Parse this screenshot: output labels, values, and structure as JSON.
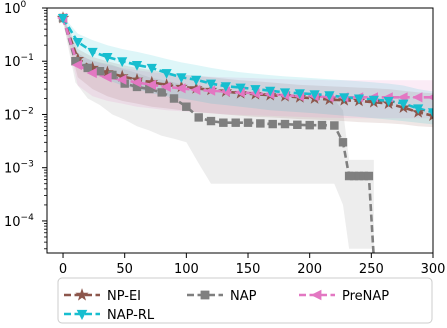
{
  "chart_data": {
    "type": "line",
    "title": "",
    "xlabel": "",
    "ylabel": "",
    "xlim": [
      -13,
      300
    ],
    "ylim": [
      2.5e-05,
      1.0
    ],
    "yscale": "log",
    "grid": false,
    "x_ticks": [
      0,
      50,
      100,
      150,
      200,
      250,
      300
    ],
    "x_tick_labels": [
      "0",
      "50",
      "100",
      "150",
      "200",
      "250",
      "300"
    ],
    "y_ticks": [
      0.0001,
      0.001,
      0.01,
      0.1,
      1
    ],
    "y_tick_labels": [
      {
        "base": "10",
        "exp": "−4"
      },
      {
        "base": "10",
        "exp": "−3"
      },
      {
        "base": "10",
        "exp": "−2"
      },
      {
        "base": "10",
        "exp": "−1"
      },
      {
        "base": "10",
        "exp": "0"
      }
    ],
    "legend": {
      "placement": "bottom",
      "entries": [
        {
          "name": "NP-EI",
          "color": "#8c564b",
          "marker": "star"
        },
        {
          "name": "NAP",
          "color": "#7f7f7f",
          "marker": "square"
        },
        {
          "name": "PreNAP",
          "color": "#e377c2",
          "marker": "triangle-left"
        },
        {
          "name": "NAP-RL",
          "color": "#17becf",
          "marker": "triangle-down"
        }
      ]
    },
    "series": [
      {
        "name": "NP-EI",
        "color": "#8c564b",
        "marker": "star",
        "x": [
          0,
          12,
          24,
          36,
          48,
          60,
          72,
          84,
          96,
          108,
          120,
          132,
          144,
          156,
          168,
          180,
          192,
          204,
          216,
          228,
          240,
          252,
          264,
          276,
          288,
          300
        ],
        "y": [
          0.65,
          0.11,
          0.075,
          0.062,
          0.052,
          0.045,
          0.04,
          0.036,
          0.033,
          0.031,
          0.029,
          0.027,
          0.025,
          0.024,
          0.023,
          0.022,
          0.021,
          0.02,
          0.019,
          0.0185,
          0.018,
          0.017,
          0.016,
          0.0135,
          0.011,
          0.0095
        ],
        "band_low": [
          0.6,
          0.05,
          0.03,
          0.022,
          0.018,
          0.016,
          0.014,
          0.013,
          0.012,
          0.011,
          0.0105,
          0.01,
          0.0095,
          0.009,
          0.0088,
          0.0085,
          0.0082,
          0.008,
          0.0078,
          0.0075,
          0.0072,
          0.007,
          0.0068,
          0.0065,
          0.006,
          0.0058
        ],
        "band_high": [
          0.7,
          0.17,
          0.12,
          0.1,
          0.085,
          0.075,
          0.068,
          0.062,
          0.057,
          0.053,
          0.05,
          0.047,
          0.044,
          0.042,
          0.04,
          0.038,
          0.036,
          0.035,
          0.034,
          0.033,
          0.032,
          0.031,
          0.03,
          0.028,
          0.026,
          0.025
        ]
      },
      {
        "name": "NAP",
        "color": "#7f7f7f",
        "marker": "square",
        "x": [
          0,
          10,
          20,
          30,
          40,
          50,
          60,
          70,
          80,
          90,
          100,
          110,
          120,
          130,
          140,
          150,
          160,
          170,
          180,
          190,
          200,
          210,
          220,
          227,
          232,
          236,
          240,
          244,
          248,
          252
        ],
        "y": [
          0.65,
          0.1,
          0.075,
          0.065,
          0.055,
          0.038,
          0.033,
          0.03,
          0.026,
          0.02,
          0.014,
          0.0088,
          0.0075,
          0.007,
          0.007,
          0.007,
          0.0068,
          0.0066,
          0.0066,
          0.0064,
          0.0063,
          0.0063,
          0.0062,
          0.003,
          0.0007,
          0.0007,
          0.0007,
          0.0007,
          0.0007,
          2e-05
        ],
        "band_low": [
          0.55,
          0.04,
          0.02,
          0.015,
          0.01,
          0.008,
          0.006,
          0.005,
          0.004,
          0.0035,
          0.003,
          0.0012,
          0.0005,
          0.0005,
          0.0005,
          0.0005,
          0.0005,
          0.0005,
          0.0005,
          0.0005,
          0.0005,
          0.0005,
          0.0005,
          0.0002,
          3e-05,
          3e-05,
          3e-05,
          3e-05,
          3e-05,
          3e-05
        ],
        "band_high": [
          0.7,
          0.15,
          0.11,
          0.095,
          0.085,
          0.07,
          0.06,
          0.05,
          0.045,
          0.04,
          0.035,
          0.03,
          0.028,
          0.026,
          0.025,
          0.024,
          0.023,
          0.022,
          0.021,
          0.021,
          0.02,
          0.02,
          0.019,
          0.012,
          0.0014,
          0.0014,
          0.0014,
          0.0014,
          0.0014,
          0.0014
        ]
      },
      {
        "name": "PreNAP",
        "color": "#e377c2",
        "marker": "triangle-left",
        "x": [
          0,
          12,
          24,
          36,
          48,
          60,
          72,
          84,
          96,
          108,
          120,
          132,
          144,
          156,
          168,
          180,
          192,
          204,
          216,
          228,
          240,
          252,
          264,
          276,
          288,
          300
        ],
        "y": [
          0.65,
          0.085,
          0.06,
          0.05,
          0.045,
          0.04,
          0.036,
          0.033,
          0.031,
          0.029,
          0.028,
          0.027,
          0.026,
          0.025,
          0.024,
          0.023,
          0.022,
          0.022,
          0.021,
          0.021,
          0.021,
          0.021,
          0.021,
          0.021,
          0.021,
          0.021
        ],
        "band_low": [
          0.6,
          0.035,
          0.022,
          0.018,
          0.016,
          0.014,
          0.013,
          0.012,
          0.0115,
          0.011,
          0.0105,
          0.01,
          0.0098,
          0.0096,
          0.0094,
          0.0092,
          0.009,
          0.0088,
          0.0087,
          0.0086,
          0.0085,
          0.0085,
          0.0085,
          0.0085,
          0.0085,
          0.0085
        ],
        "band_high": [
          0.7,
          0.14,
          0.1,
          0.085,
          0.075,
          0.068,
          0.062,
          0.058,
          0.055,
          0.053,
          0.051,
          0.05,
          0.049,
          0.048,
          0.047,
          0.046,
          0.045,
          0.045,
          0.044,
          0.044,
          0.044,
          0.044,
          0.044,
          0.044,
          0.044,
          0.044
        ]
      },
      {
        "name": "NAP-RL",
        "color": "#17becf",
        "marker": "triangle-down",
        "x": [
          0,
          12,
          24,
          36,
          48,
          60,
          72,
          84,
          96,
          108,
          120,
          132,
          144,
          156,
          168,
          180,
          192,
          204,
          216,
          228,
          240,
          252,
          264,
          276,
          288,
          300
        ],
        "y": [
          0.65,
          0.23,
          0.15,
          0.12,
          0.1,
          0.085,
          0.075,
          0.06,
          0.05,
          0.045,
          0.038,
          0.034,
          0.032,
          0.03,
          0.028,
          0.026,
          0.025,
          0.024,
          0.023,
          0.021,
          0.02,
          0.019,
          0.018,
          0.016,
          0.013,
          0.011
        ],
        "band_low": [
          0.6,
          0.1,
          0.06,
          0.045,
          0.035,
          0.03,
          0.025,
          0.022,
          0.02,
          0.018,
          0.016,
          0.015,
          0.014,
          0.013,
          0.012,
          0.0115,
          0.011,
          0.0105,
          0.01,
          0.0095,
          0.009,
          0.0085,
          0.008,
          0.0075,
          0.007,
          0.0065
        ],
        "band_high": [
          0.7,
          0.33,
          0.25,
          0.2,
          0.17,
          0.15,
          0.13,
          0.11,
          0.095,
          0.085,
          0.075,
          0.068,
          0.062,
          0.058,
          0.055,
          0.052,
          0.05,
          0.048,
          0.046,
          0.044,
          0.042,
          0.04,
          0.038,
          0.035,
          0.03,
          0.027
        ]
      }
    ]
  }
}
